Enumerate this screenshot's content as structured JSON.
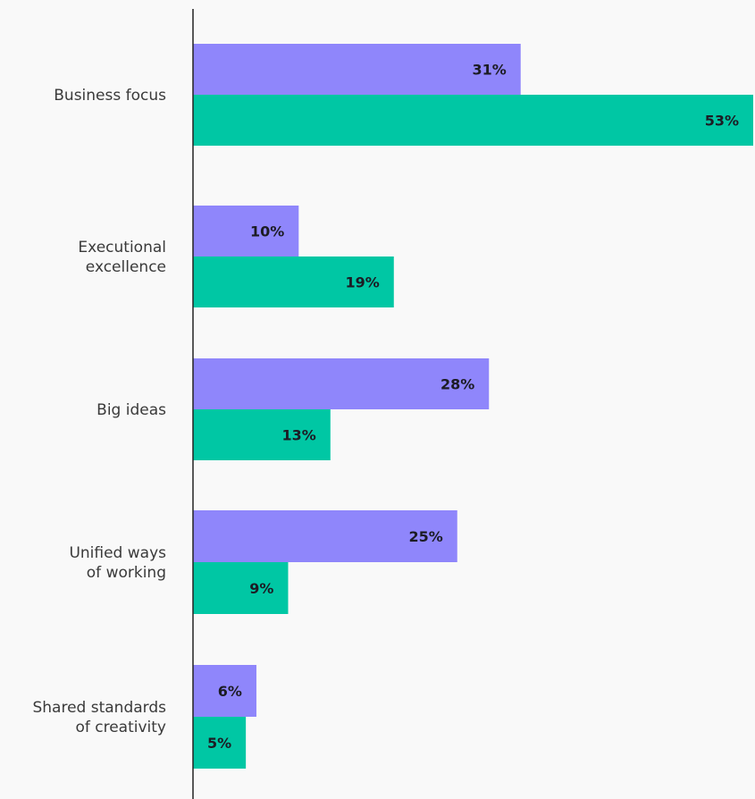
{
  "chart_data": {
    "type": "bar",
    "orientation": "horizontal",
    "categories": [
      [
        "Business focus"
      ],
      [
        "Executional",
        "excellence"
      ],
      [
        "Big ideas"
      ],
      [
        "Unified ways",
        "of working"
      ],
      [
        "Shared standards",
        "of creativity"
      ]
    ],
    "series": [
      {
        "values": [
          31,
          10,
          28,
          25,
          6
        ],
        "value_labels": [
          "31%",
          "10%",
          "28%",
          "25%",
          "6%"
        ],
        "color": "#8f86fb"
      },
      {
        "values": [
          53,
          19,
          13,
          9,
          5
        ],
        "value_labels": [
          "53%",
          "19%",
          "13%",
          "9%",
          "5%"
        ],
        "color": "#00c7a4"
      }
    ],
    "xlim": [
      0,
      55
    ],
    "grid": false,
    "legend": "none"
  }
}
